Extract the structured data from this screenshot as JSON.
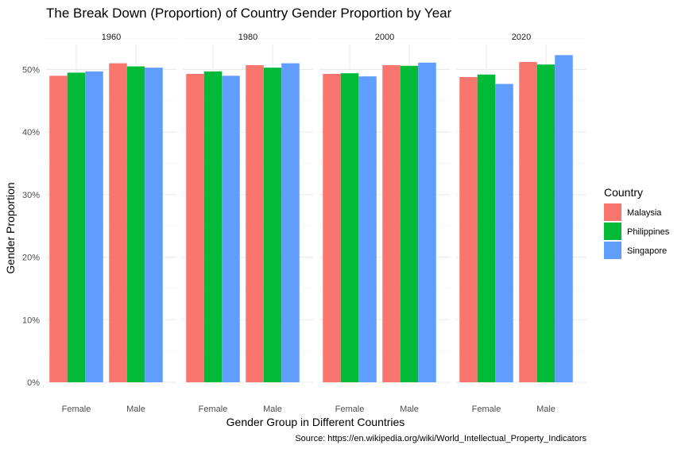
{
  "chart_data": {
    "type": "bar",
    "title": "The Break Down (Proportion) of Country Gender Proportion by Year",
    "xlabel": "Gender Group in Different Countries",
    "ylabel": "Gender Proportion",
    "caption": "Source: https://en.wikipedia.org/wiki/World_Intellectual_Property_Indicators",
    "facets": [
      "1960",
      "1980",
      "2000",
      "2020"
    ],
    "categories": [
      "Female",
      "Male"
    ],
    "ylim": [
      0,
      0.54
    ],
    "yticks": [
      0,
      0.1,
      0.2,
      0.3,
      0.4,
      0.5
    ],
    "ytick_labels": [
      "0%",
      "10%",
      "20%",
      "30%",
      "40%",
      "50%"
    ],
    "grid": true,
    "legend": {
      "title": "Country",
      "position": "right",
      "entries": [
        {
          "name": "Malaysia",
          "color": "#F8766D"
        },
        {
          "name": "Philippines",
          "color": "#00BA38"
        },
        {
          "name": "Singapore",
          "color": "#619CFF"
        }
      ]
    },
    "series": [
      {
        "name": "Malaysia",
        "color": "#F8766D",
        "values": [
          [
            0.49,
            0.51
          ],
          [
            0.493,
            0.507
          ],
          [
            0.493,
            0.507
          ],
          [
            0.488,
            0.512
          ]
        ]
      },
      {
        "name": "Philippines",
        "color": "#00BA38",
        "values": [
          [
            0.495,
            0.505
          ],
          [
            0.497,
            0.503
          ],
          [
            0.494,
            0.506
          ],
          [
            0.492,
            0.508
          ]
        ]
      },
      {
        "name": "Singapore",
        "color": "#619CFF",
        "values": [
          [
            0.497,
            0.503
          ],
          [
            0.49,
            0.51
          ],
          [
            0.489,
            0.511
          ],
          [
            0.477,
            0.523
          ]
        ]
      }
    ]
  }
}
